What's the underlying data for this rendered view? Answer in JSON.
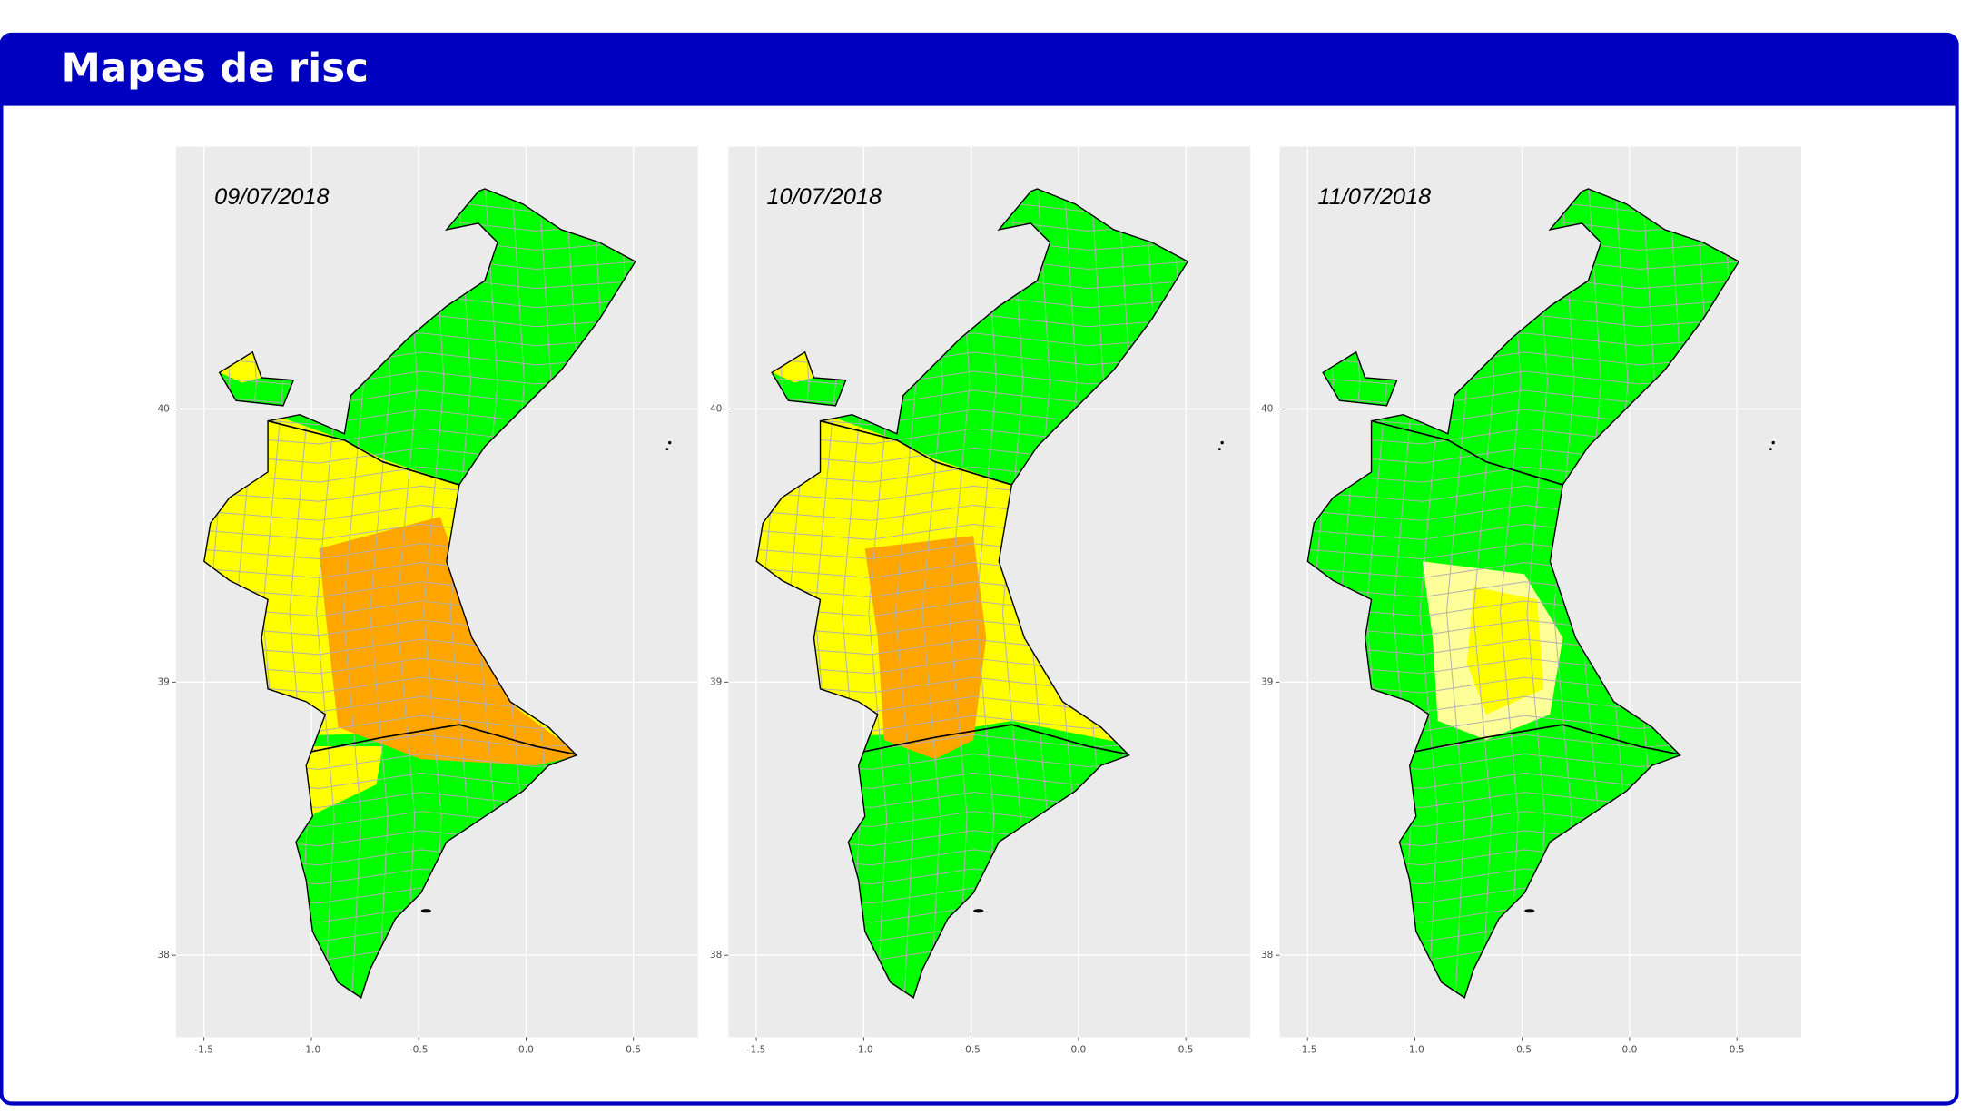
{
  "header": {
    "title": "Mapes de risc"
  },
  "chart_data": [
    {
      "type": "map",
      "title": "09/07/2018",
      "xlim": [
        -1.63,
        0.8
      ],
      "ylim": [
        37.7,
        40.96
      ],
      "xticks": [
        -1.5,
        {
          "value": -1,
          "label": "-1.0"
        },
        -0.5,
        {
          "value": 0,
          "label": "0.0"
        },
        0.5
      ],
      "yticks": [
        38,
        39,
        40
      ],
      "grid": true
    },
    {
      "type": "map",
      "title": "10/07/2018",
      "xlim": [
        -1.63,
        0.8
      ],
      "ylim": [
        37.7,
        40.96
      ],
      "xticks": [
        -1.5,
        {
          "value": -1,
          "label": "-1.0"
        },
        -0.5,
        {
          "value": 0,
          "label": "0.0"
        },
        0.5
      ],
      "yticks": [
        38,
        39,
        40
      ],
      "grid": true
    },
    {
      "type": "map",
      "title": "11/07/2018",
      "xlim": [
        -1.63,
        0.8
      ],
      "ylim": [
        37.7,
        40.96
      ],
      "xticks": [
        -1.5,
        {
          "value": -1,
          "label": "-1.0"
        },
        -0.5,
        {
          "value": 0,
          "label": "0.0"
        },
        0.5
      ],
      "yticks": [
        38,
        39,
        40
      ],
      "grid": true
    }
  ]
}
